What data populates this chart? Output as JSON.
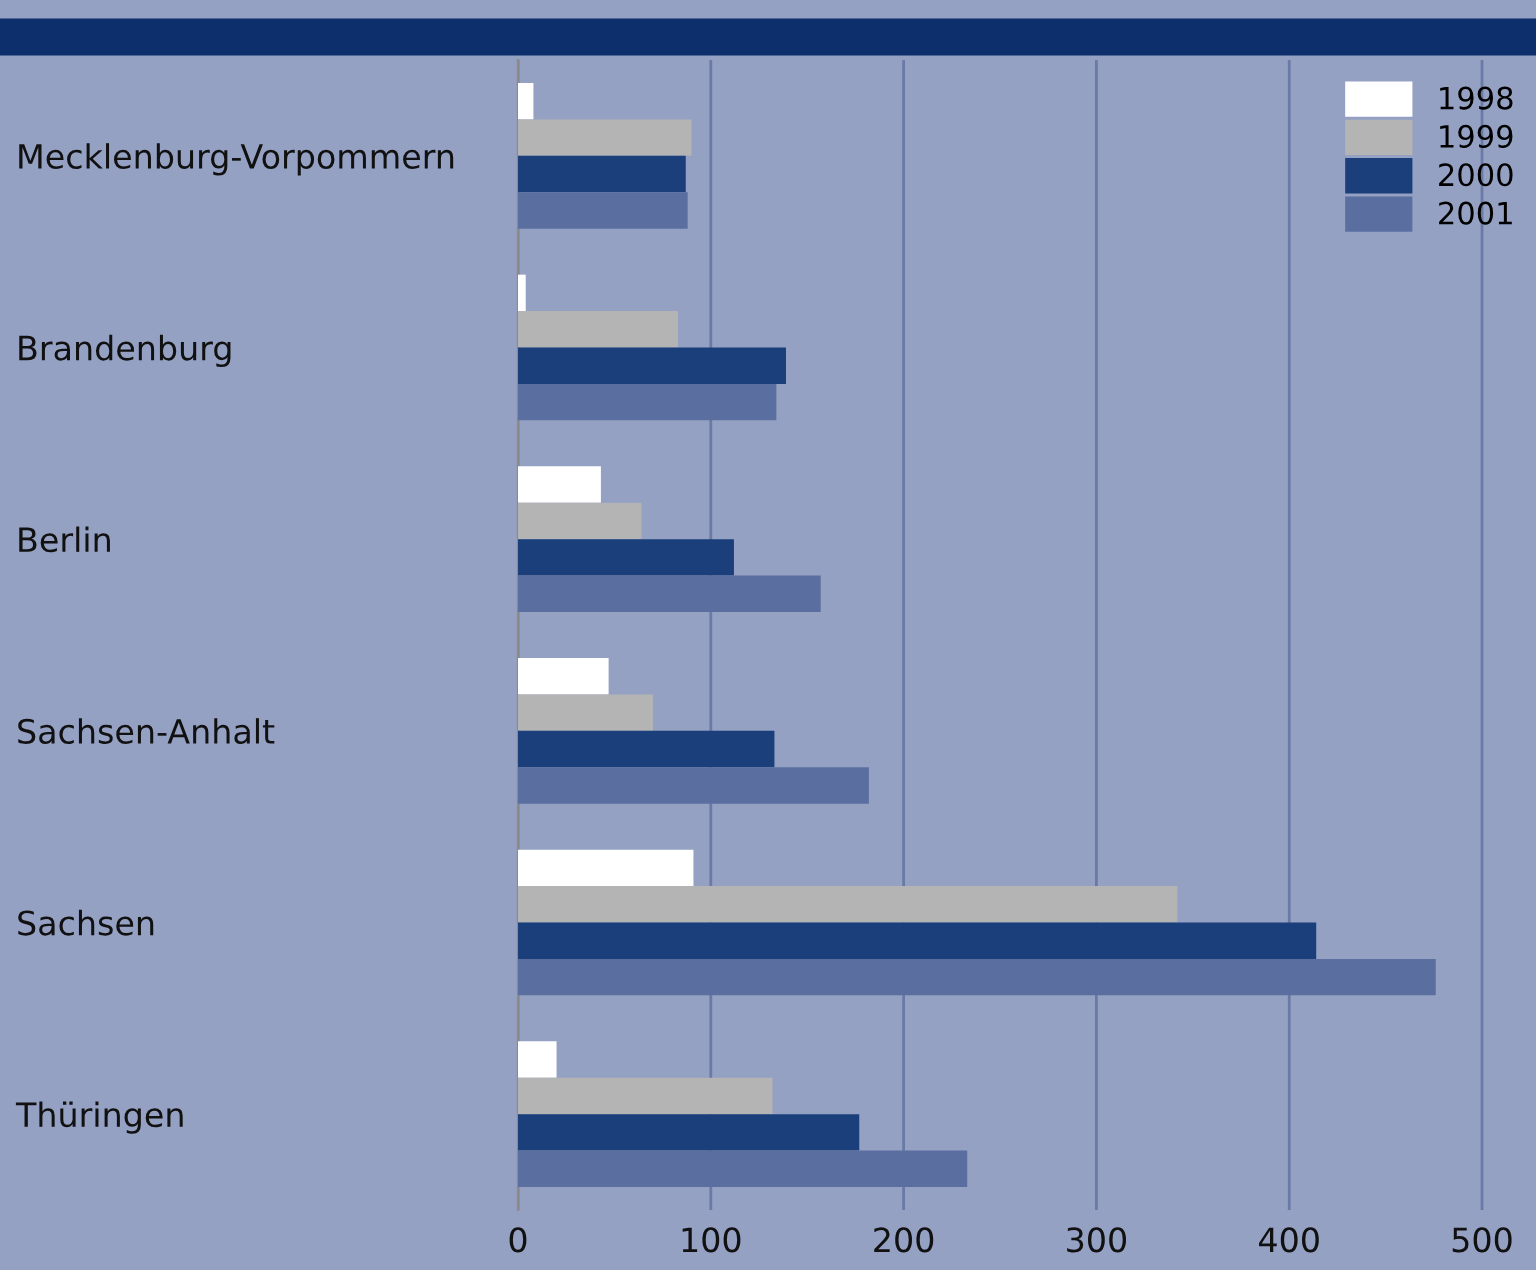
{
  "chart_data": {
    "type": "bar",
    "orientation": "horizontal",
    "categories": [
      "Mecklenburg-Vorpommern",
      "Brandenburg",
      "Berlin",
      "Sachsen-Anhalt",
      "Sachsen",
      "Thüringen"
    ],
    "series": [
      {
        "name": "1998",
        "color": "#ffffff",
        "values": [
          8,
          4,
          43,
          47,
          91,
          20
        ]
      },
      {
        "name": "1999",
        "color": "#b4b4b4",
        "values": [
          90,
          83,
          64,
          70,
          342,
          132
        ]
      },
      {
        "name": "2000",
        "color": "#1a3f7a",
        "values": [
          87,
          139,
          112,
          133,
          414,
          177
        ]
      },
      {
        "name": "2001",
        "color": "#5a6fa0",
        "values": [
          88,
          134,
          157,
          182,
          476,
          233
        ]
      }
    ],
    "xlim": [
      0,
      528
    ],
    "xticks": [
      0,
      100,
      200,
      300,
      400,
      500
    ],
    "grid": "x",
    "legend": "top right"
  }
}
